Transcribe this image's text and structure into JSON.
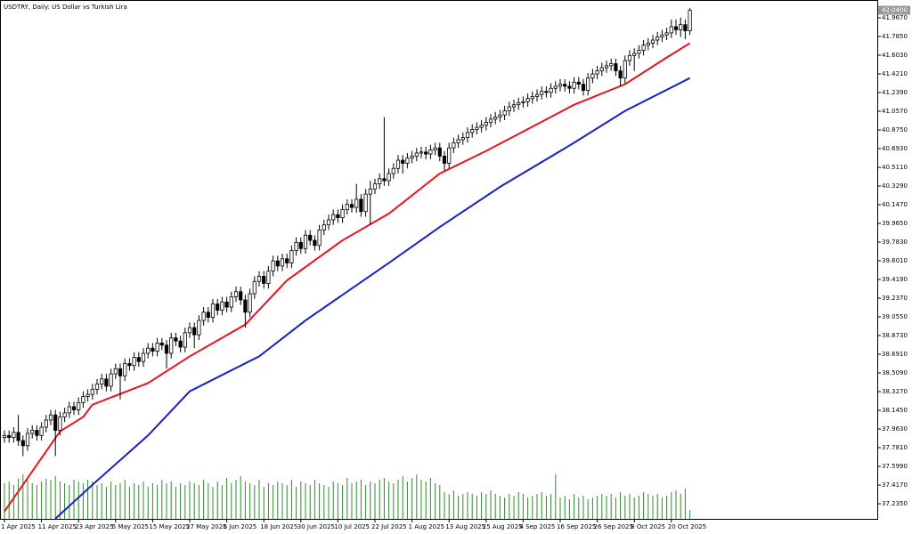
{
  "chart_data": {
    "type": "candlestick",
    "title": "USDTRY, Daily:  US Dollar vs Turkish Lira",
    "ylim": [
      37.088,
      42.14
    ],
    "yticks": [
      {
        "value": 37.235,
        "label": "37.2350"
      },
      {
        "value": 37.417,
        "label": "37.4170"
      },
      {
        "value": 37.599,
        "label": "37.5990"
      },
      {
        "value": 37.781,
        "label": "37.7810"
      },
      {
        "value": 37.963,
        "label": "37.9630"
      },
      {
        "value": 38.145,
        "label": "38.1450"
      },
      {
        "value": 38.327,
        "label": "38.3270"
      },
      {
        "value": 38.509,
        "label": "38.5090"
      },
      {
        "value": 38.691,
        "label": "38.6910"
      },
      {
        "value": 38.873,
        "label": "38.8730"
      },
      {
        "value": 39.055,
        "label": "39.0550"
      },
      {
        "value": 39.237,
        "label": "39.2370"
      },
      {
        "value": 39.419,
        "label": "39.4190"
      },
      {
        "value": 39.601,
        "label": "39.6010"
      },
      {
        "value": 39.783,
        "label": "39.7830"
      },
      {
        "value": 39.965,
        "label": "39.9650"
      },
      {
        "value": 40.147,
        "label": "40.1470"
      },
      {
        "value": 40.329,
        "label": "40.3290"
      },
      {
        "value": 40.511,
        "label": "40.5110"
      },
      {
        "value": 40.693,
        "label": "40.6930"
      },
      {
        "value": 40.875,
        "label": "40.8750"
      },
      {
        "value": 41.057,
        "label": "41.0570"
      },
      {
        "value": 41.239,
        "label": "41.2390"
      },
      {
        "value": 41.421,
        "label": "41.4210"
      },
      {
        "value": 41.603,
        "label": "41.6030"
      },
      {
        "value": 41.785,
        "label": "41.7850"
      },
      {
        "value": 41.967,
        "label": "41.9670"
      }
    ],
    "last_price": {
      "value": 42.04,
      "label": "42.0400"
    },
    "categories": [
      "1 Apr 2025",
      null,
      null,
      null,
      null,
      null,
      null,
      null,
      "11 Apr 2025",
      null,
      null,
      null,
      null,
      null,
      null,
      null,
      "23 Apr 2025",
      null,
      null,
      null,
      null,
      null,
      null,
      null,
      "5 May 2025",
      null,
      null,
      null,
      null,
      null,
      null,
      null,
      "15 May 2025",
      null,
      null,
      null,
      null,
      null,
      null,
      null,
      "27 May 2025",
      null,
      null,
      null,
      null,
      null,
      null,
      null,
      "6 Jun 2025",
      null,
      null,
      null,
      null,
      null,
      null,
      null,
      "18 Jun 2025",
      null,
      null,
      null,
      null,
      null,
      null,
      null,
      "30 Jun 2025",
      null,
      null,
      null,
      null,
      null,
      null,
      null,
      "10 Jul 2025",
      null,
      null,
      null,
      null,
      null,
      null,
      null,
      "22 Jul 2025",
      null,
      null,
      null,
      null,
      null,
      null,
      null,
      "1 Aug 2025",
      null,
      null,
      null,
      null,
      null,
      null,
      null,
      "13 Aug 2025",
      null,
      null,
      null,
      null,
      null,
      null,
      null,
      "25 Aug 2025",
      null,
      null,
      null,
      null,
      null,
      null,
      null,
      "4 Sep 2025",
      null,
      null,
      null,
      null,
      null,
      null,
      null,
      "16 Sep 2025",
      null,
      null,
      null,
      null,
      null,
      null,
      null,
      "26 Sep 2025",
      null,
      null,
      null,
      null,
      null,
      null,
      null,
      "8 Oct 2025",
      null,
      null,
      null,
      null,
      null,
      null,
      null,
      "20 Oct 2025",
      null,
      null,
      null,
      null
    ],
    "candles": [
      [
        37.88,
        37.95,
        37.83,
        37.9
      ],
      [
        37.9,
        37.95,
        37.83,
        37.88
      ],
      [
        37.88,
        37.98,
        37.83,
        37.93
      ],
      [
        37.93,
        38.1,
        37.8,
        37.85
      ],
      [
        37.85,
        37.9,
        37.7,
        37.8
      ],
      [
        37.8,
        37.97,
        37.75,
        37.92
      ],
      [
        37.92,
        38.0,
        37.87,
        37.95
      ],
      [
        37.95,
        38.0,
        37.85,
        37.9
      ],
      [
        37.9,
        38.03,
        37.85,
        37.98
      ],
      [
        37.98,
        38.1,
        37.93,
        38.05
      ],
      [
        38.05,
        38.15,
        38.0,
        38.1
      ],
      [
        38.1,
        38.15,
        37.7,
        37.95
      ],
      [
        37.95,
        38.13,
        37.9,
        38.08
      ],
      [
        38.08,
        38.17,
        38.03,
        38.12
      ],
      [
        38.12,
        38.23,
        38.07,
        38.18
      ],
      [
        38.18,
        38.23,
        38.1,
        38.15
      ],
      [
        38.15,
        38.27,
        38.1,
        38.22
      ],
      [
        38.22,
        38.33,
        38.17,
        38.28
      ],
      [
        38.28,
        38.35,
        38.23,
        38.3
      ],
      [
        38.3,
        38.4,
        38.25,
        38.35
      ],
      [
        38.35,
        38.45,
        38.3,
        38.4
      ],
      [
        38.4,
        38.5,
        38.35,
        38.45
      ],
      [
        38.45,
        38.5,
        38.33,
        38.38
      ],
      [
        38.38,
        38.55,
        38.33,
        38.5
      ],
      [
        38.5,
        38.6,
        38.45,
        38.55
      ],
      [
        38.55,
        38.6,
        38.25,
        38.48
      ],
      [
        38.48,
        38.65,
        38.43,
        38.6
      ],
      [
        38.6,
        38.65,
        38.53,
        38.58
      ],
      [
        38.58,
        38.71,
        38.53,
        38.66
      ],
      [
        38.66,
        38.71,
        38.57,
        38.62
      ],
      [
        38.62,
        38.75,
        38.57,
        38.7
      ],
      [
        38.7,
        38.8,
        38.65,
        38.75
      ],
      [
        38.75,
        38.8,
        38.67,
        38.72
      ],
      [
        38.72,
        38.85,
        38.67,
        38.8
      ],
      [
        38.8,
        38.85,
        38.73,
        38.78
      ],
      [
        38.78,
        38.83,
        38.55,
        38.7
      ],
      [
        38.7,
        38.9,
        38.65,
        38.85
      ],
      [
        38.85,
        38.9,
        38.77,
        38.82
      ],
      [
        38.82,
        38.87,
        38.71,
        38.76
      ],
      [
        38.76,
        38.95,
        38.71,
        38.9
      ],
      [
        38.9,
        39.0,
        38.85,
        38.95
      ],
      [
        38.95,
        39.0,
        38.75,
        38.88
      ],
      [
        38.88,
        39.07,
        38.83,
        39.02
      ],
      [
        39.02,
        39.15,
        38.97,
        39.1
      ],
      [
        39.1,
        39.15,
        39.0,
        39.05
      ],
      [
        39.05,
        39.23,
        39.0,
        39.18
      ],
      [
        39.18,
        39.23,
        39.07,
        39.12
      ],
      [
        39.12,
        39.25,
        39.07,
        39.2
      ],
      [
        39.2,
        39.25,
        39.1,
        39.15
      ],
      [
        39.15,
        39.3,
        39.1,
        39.25
      ],
      [
        39.25,
        39.35,
        39.2,
        39.3
      ],
      [
        39.3,
        39.35,
        39.17,
        39.22
      ],
      [
        39.22,
        39.27,
        38.95,
        39.1
      ],
      [
        39.1,
        39.33,
        39.05,
        39.28
      ],
      [
        39.28,
        39.45,
        39.23,
        39.4
      ],
      [
        39.4,
        39.5,
        39.35,
        39.45
      ],
      [
        39.45,
        39.5,
        39.33,
        39.38
      ],
      [
        39.38,
        39.55,
        39.33,
        39.5
      ],
      [
        39.5,
        39.65,
        39.45,
        39.6
      ],
      [
        39.6,
        39.65,
        39.5,
        39.55
      ],
      [
        39.55,
        39.67,
        39.5,
        39.62
      ],
      [
        39.62,
        39.67,
        39.53,
        39.58
      ],
      [
        39.58,
        39.75,
        39.53,
        39.7
      ],
      [
        39.7,
        39.83,
        39.65,
        39.78
      ],
      [
        39.78,
        39.83,
        39.67,
        39.72
      ],
      [
        39.72,
        39.9,
        39.67,
        39.85
      ],
      [
        39.85,
        39.9,
        39.75,
        39.8
      ],
      [
        39.8,
        39.85,
        39.7,
        39.75
      ],
      [
        39.75,
        39.95,
        39.7,
        39.9
      ],
      [
        39.9,
        40.0,
        39.85,
        39.95
      ],
      [
        39.95,
        40.05,
        39.9,
        40.0
      ],
      [
        40.0,
        40.1,
        39.95,
        40.05
      ],
      [
        40.05,
        40.1,
        39.97,
        40.02
      ],
      [
        40.02,
        40.15,
        39.97,
        40.1
      ],
      [
        40.1,
        40.2,
        40.05,
        40.15
      ],
      [
        40.15,
        40.2,
        40.07,
        40.12
      ],
      [
        40.12,
        40.35,
        40.07,
        40.2
      ],
      [
        40.2,
        40.25,
        40.03,
        40.08
      ],
      [
        40.08,
        40.3,
        40.03,
        40.25
      ],
      [
        40.25,
        40.38,
        39.95,
        40.3
      ],
      [
        40.3,
        40.4,
        40.25,
        40.35
      ],
      [
        40.35,
        40.45,
        40.3,
        40.4
      ],
      [
        40.4,
        41.0,
        40.33,
        40.38
      ],
      [
        40.38,
        40.5,
        40.33,
        40.45
      ],
      [
        40.45,
        40.55,
        40.4,
        40.5
      ],
      [
        40.5,
        40.63,
        40.45,
        40.58
      ],
      [
        40.58,
        40.63,
        40.45,
        40.55
      ],
      [
        40.55,
        40.65,
        40.5,
        40.6
      ],
      [
        40.6,
        40.67,
        40.55,
        40.62
      ],
      [
        40.62,
        40.7,
        40.57,
        40.65
      ],
      [
        40.65,
        40.71,
        40.6,
        40.66
      ],
      [
        40.66,
        40.71,
        40.59,
        40.64
      ],
      [
        40.64,
        40.73,
        40.59,
        40.68
      ],
      [
        40.68,
        40.75,
        40.63,
        40.7
      ],
      [
        40.7,
        40.75,
        40.57,
        40.62
      ],
      [
        40.62,
        40.67,
        40.48,
        40.55
      ],
      [
        40.55,
        40.75,
        40.5,
        40.7
      ],
      [
        40.7,
        40.8,
        40.65,
        40.75
      ],
      [
        40.75,
        40.83,
        40.7,
        40.78
      ],
      [
        40.78,
        40.85,
        40.73,
        40.8
      ],
      [
        40.8,
        40.9,
        40.75,
        40.85
      ],
      [
        40.85,
        40.93,
        40.8,
        40.88
      ],
      [
        40.88,
        40.95,
        40.83,
        40.9
      ],
      [
        40.9,
        40.97,
        40.85,
        40.92
      ],
      [
        40.92,
        41.0,
        40.87,
        40.95
      ],
      [
        40.95,
        41.03,
        40.9,
        40.98
      ],
      [
        40.98,
        41.05,
        40.93,
        41.0
      ],
      [
        41.0,
        41.07,
        40.95,
        41.02
      ],
      [
        41.02,
        41.11,
        40.97,
        41.06
      ],
      [
        41.06,
        41.15,
        41.01,
        41.1
      ],
      [
        41.1,
        41.17,
        41.05,
        41.12
      ],
      [
        41.12,
        41.19,
        41.07,
        41.14
      ],
      [
        41.14,
        41.2,
        41.09,
        41.15
      ],
      [
        41.15,
        41.23,
        41.1,
        41.18
      ],
      [
        41.18,
        41.25,
        41.13,
        41.2
      ],
      [
        41.2,
        41.27,
        41.15,
        41.22
      ],
      [
        41.22,
        41.3,
        41.17,
        41.25
      ],
      [
        41.25,
        41.3,
        41.19,
        41.24
      ],
      [
        41.24,
        41.33,
        41.19,
        41.28
      ],
      [
        41.28,
        41.35,
        41.23,
        41.3
      ],
      [
        41.3,
        41.37,
        41.25,
        41.32
      ],
      [
        41.32,
        41.37,
        41.25,
        41.3
      ],
      [
        41.3,
        41.35,
        41.23,
        41.28
      ],
      [
        41.28,
        41.39,
        41.23,
        41.34
      ],
      [
        41.34,
        41.39,
        41.27,
        41.32
      ],
      [
        41.32,
        41.37,
        41.21,
        41.26
      ],
      [
        41.26,
        41.43,
        41.21,
        41.38
      ],
      [
        41.38,
        41.47,
        41.33,
        41.42
      ],
      [
        41.42,
        41.5,
        41.37,
        41.45
      ],
      [
        41.45,
        41.53,
        41.4,
        41.48
      ],
      [
        41.48,
        41.55,
        41.43,
        41.5
      ],
      [
        41.5,
        41.57,
        41.45,
        41.52
      ],
      [
        41.52,
        41.57,
        41.4,
        41.45
      ],
      [
        41.45,
        41.5,
        41.3,
        41.38
      ],
      [
        41.38,
        41.6,
        41.33,
        41.55
      ],
      [
        41.55,
        41.65,
        41.5,
        41.6
      ],
      [
        41.6,
        41.67,
        41.45,
        41.62
      ],
      [
        41.62,
        41.7,
        41.57,
        41.65
      ],
      [
        41.65,
        41.75,
        41.6,
        41.7
      ],
      [
        41.7,
        41.77,
        41.65,
        41.72
      ],
      [
        41.72,
        41.8,
        41.67,
        41.75
      ],
      [
        41.75,
        41.83,
        41.7,
        41.78
      ],
      [
        41.78,
        41.85,
        41.73,
        41.8
      ],
      [
        41.8,
        41.87,
        41.75,
        41.82
      ],
      [
        41.82,
        41.95,
        41.77,
        41.88
      ],
      [
        41.88,
        41.95,
        41.8,
        41.85
      ],
      [
        41.85,
        41.97,
        41.78,
        41.9
      ],
      [
        41.9,
        41.95,
        41.76,
        41.84
      ],
      [
        41.84,
        42.06,
        41.8,
        42.04
      ]
    ],
    "volume_color": "#2e8b2e",
    "volumes": [
      40,
      42,
      38,
      45,
      50,
      44,
      40,
      38,
      42,
      45,
      44,
      48,
      42,
      40,
      38,
      44,
      42,
      40,
      44,
      42,
      38,
      40,
      36,
      42,
      38,
      40,
      44,
      36,
      40,
      38,
      42,
      36,
      40,
      38,
      44,
      40,
      42,
      36,
      40,
      38,
      42,
      40,
      38,
      44,
      40,
      36,
      42,
      38,
      46,
      40,
      44,
      48,
      42,
      40,
      38,
      44,
      36,
      40,
      38,
      42,
      40,
      38,
      44,
      36,
      42,
      40,
      38,
      44,
      40,
      38,
      36,
      42,
      40,
      38,
      46,
      40,
      42,
      44,
      38,
      42,
      40,
      44,
      46,
      42,
      40,
      44,
      48,
      42,
      46,
      50,
      44,
      42,
      46,
      40,
      38,
      30,
      28,
      32,
      26,
      28,
      30,
      28,
      26,
      30,
      28,
      32,
      28,
      26,
      24,
      28,
      26,
      30,
      28,
      24,
      26,
      28,
      30,
      26,
      28,
      50,
      24,
      26,
      22,
      28,
      24,
      26,
      22,
      24,
      26,
      28,
      26,
      28,
      24,
      30,
      26,
      28,
      24,
      26,
      30,
      28,
      26,
      28,
      24,
      26,
      30,
      32,
      28,
      34,
      10
    ],
    "lines": [
      {
        "color": "#e8141e",
        "x": [
          0,
          6,
          12,
          17,
          19,
          31,
          40,
          52,
          61,
          73,
          83,
          94,
          104,
          115,
          123,
          134,
          143,
          148
        ],
        "values": [
          37.16,
          37.55,
          37.94,
          38.08,
          38.2,
          38.41,
          38.67,
          38.98,
          39.41,
          39.8,
          40.06,
          40.45,
          40.67,
          40.93,
          41.12,
          41.32,
          41.58,
          41.72
        ]
      },
      {
        "color": "#1420c8",
        "x": [
          11,
          19,
          31,
          40,
          55,
          65,
          83,
          94,
          107,
          123,
          134,
          148
        ],
        "values": [
          37.09,
          37.42,
          37.9,
          38.33,
          38.67,
          39.02,
          39.58,
          39.93,
          40.32,
          40.75,
          41.06,
          41.38
        ]
      }
    ]
  }
}
